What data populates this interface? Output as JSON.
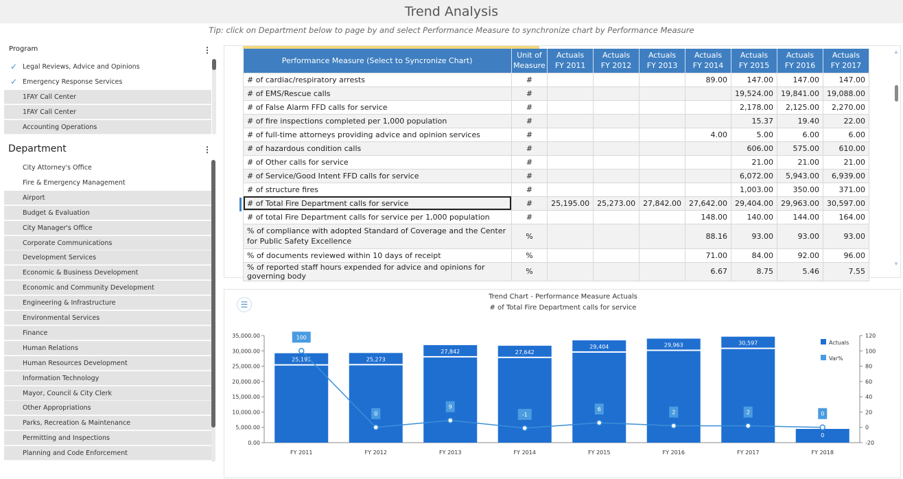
{
  "page": {
    "title": "Trend Analysis",
    "tip": "Tip: click on Department below to page by and select Performance Measure to synchronize chart by Performance Measure"
  },
  "program_slicer": {
    "header": "Program",
    "items": [
      {
        "label": "Legal Reviews, Advice and Opinions",
        "selected": true
      },
      {
        "label": "Emergency Response Services",
        "selected": true
      },
      {
        "label": "1FAY Call Center",
        "selected": false
      },
      {
        "label": "1FAY Call Center",
        "selected": false
      },
      {
        "label": "Accounting Operations",
        "selected": false
      }
    ]
  },
  "department_slicer": {
    "header": "Department",
    "items": [
      {
        "label": "City Attorney's Office",
        "selected": true
      },
      {
        "label": "Fire & Emergency Management",
        "selected": true
      },
      {
        "label": "Airport",
        "selected": false
      },
      {
        "label": "Budget & Evaluation",
        "selected": false
      },
      {
        "label": "City Manager's Office",
        "selected": false
      },
      {
        "label": "Corporate Communications",
        "selected": false
      },
      {
        "label": "Development Services",
        "selected": false
      },
      {
        "label": "Economic & Business Development",
        "selected": false
      },
      {
        "label": "Economic and Community Development",
        "selected": false
      },
      {
        "label": "Engineering & Infrastructure",
        "selected": false
      },
      {
        "label": "Environmental Services",
        "selected": false
      },
      {
        "label": "Finance",
        "selected": false
      },
      {
        "label": "Human Relations",
        "selected": false
      },
      {
        "label": "Human Resources Development",
        "selected": false
      },
      {
        "label": "Information Technology",
        "selected": false
      },
      {
        "label": "Mayor, Council & City Clerk",
        "selected": false
      },
      {
        "label": "Other Appropriations",
        "selected": false
      },
      {
        "label": "Parks, Recreation & Maintenance",
        "selected": false
      },
      {
        "label": "Permitting and Inspections",
        "selected": false
      },
      {
        "label": "Planning and Code Enforcement",
        "selected": false
      }
    ]
  },
  "table": {
    "headers": {
      "measure": "Performance Measure (Select to Syncronize Chart)",
      "unit": [
        "Unit of",
        "Measure"
      ],
      "years": [
        [
          "Actuals",
          "FY 2011"
        ],
        [
          "Actuals",
          "FY 2012"
        ],
        [
          "Actuals",
          "FY 2013"
        ],
        [
          "Actuals",
          "FY 2014"
        ],
        [
          "Actuals",
          "FY 2015"
        ],
        [
          "Actuals",
          "FY 2016"
        ],
        [
          "Actuals",
          "FY 2017"
        ]
      ]
    },
    "rows": [
      {
        "measure": "# of cardiac/respiratory arrests",
        "unit": "#",
        "values": [
          "",
          "",
          "",
          "89.00",
          "147.00",
          "147.00",
          "147.00"
        ]
      },
      {
        "measure": "# of EMS/Rescue calls",
        "unit": "#",
        "values": [
          "",
          "",
          "",
          "",
          "19,524.00",
          "19,841.00",
          "19,088.00"
        ]
      },
      {
        "measure": "# of False Alarm FFD calls for service",
        "unit": "#",
        "values": [
          "",
          "",
          "",
          "",
          "2,178.00",
          "2,125.00",
          "2,270.00"
        ]
      },
      {
        "measure": "# of fire inspections completed per 1,000 population",
        "unit": "#",
        "values": [
          "",
          "",
          "",
          "",
          "15.37",
          "19.40",
          "22.00"
        ]
      },
      {
        "measure": "# of full-time attorneys providing advice and opinion services",
        "unit": "#",
        "values": [
          "",
          "",
          "",
          "4.00",
          "5.00",
          "6.00",
          "6.00"
        ]
      },
      {
        "measure": "# of hazardous condition calls",
        "unit": "#",
        "values": [
          "",
          "",
          "",
          "",
          "606.00",
          "575.00",
          "610.00"
        ]
      },
      {
        "measure": "# of Other calls for service",
        "unit": "#",
        "values": [
          "",
          "",
          "",
          "",
          "21.00",
          "21.00",
          "21.00"
        ]
      },
      {
        "measure": "# of Service/Good Intent FFD calls for service",
        "unit": "#",
        "values": [
          "",
          "",
          "",
          "",
          "6,072.00",
          "5,943.00",
          "6,939.00"
        ]
      },
      {
        "measure": "# of structure fires",
        "unit": "#",
        "values": [
          "",
          "",
          "",
          "",
          "1,003.00",
          "350.00",
          "371.00"
        ]
      },
      {
        "measure": "# of Total Fire Department calls for service",
        "unit": "#",
        "values": [
          "25,195.00",
          "25,273.00",
          "27,842.00",
          "27,642.00",
          "29,404.00",
          "29,963.00",
          "30,597.00"
        ],
        "active": true
      },
      {
        "measure": "# of total Fire Department calls for service per 1,000 population",
        "unit": "#",
        "values": [
          "",
          "",
          "",
          "148.00",
          "140.00",
          "144.00",
          "164.00"
        ]
      },
      {
        "measure": "% of  compliance with adopted Standard of Coverage and the Center for Public Safety Excellence",
        "unit": "%",
        "values": [
          "",
          "",
          "",
          "88.16",
          "93.00",
          "93.00",
          "93.00"
        ],
        "tall": true
      },
      {
        "measure": "% of documents reviewed within 10 days of receipt",
        "unit": "%",
        "values": [
          "",
          "",
          "",
          "71.00",
          "84.00",
          "92.00",
          "96.00"
        ]
      },
      {
        "measure": "% of reported staff hours expended for advice and opinions for governing body",
        "unit": "%",
        "values": [
          "",
          "",
          "",
          "6.67",
          "8.75",
          "5.46",
          "7.55"
        ]
      }
    ]
  },
  "chart_data": {
    "type": "bar",
    "title": "Trend Chart - Performance Measure Actuals",
    "subtitle": "# of Total Fire Department calls for service",
    "categories": [
      "FY 2011",
      "FY 2012",
      "FY 2013",
      "FY 2014",
      "FY 2015",
      "FY 2016",
      "FY 2017",
      "FY 2018"
    ],
    "series": [
      {
        "name": "Actuals",
        "type": "bar",
        "axis": "left",
        "values": [
          25195,
          25273,
          27842,
          27642,
          29404,
          29963,
          30597,
          0
        ],
        "labels": [
          "25,195",
          "25,273",
          "27,842",
          "27,642",
          "29,404",
          "29,963",
          "30,597",
          "0"
        ]
      },
      {
        "name": "Var%",
        "type": "line",
        "axis": "right",
        "values": [
          100,
          0,
          9,
          -1,
          6,
          2,
          2,
          0
        ],
        "labels": [
          "100",
          "0",
          "9",
          "-1",
          "6",
          "2",
          "2",
          "0"
        ]
      }
    ],
    "left_axis": {
      "min": 0,
      "max": 35000,
      "ticks": [
        "0.00",
        "5,000.00",
        "10,000.00",
        "15,000.00",
        "20,000.00",
        "25,000.00",
        "30,000.00",
        "35,000.00"
      ]
    },
    "right_axis": {
      "min": -20,
      "max": 120,
      "ticks": [
        "-20",
        "0",
        "20",
        "40",
        "60",
        "80",
        "100",
        "120"
      ]
    },
    "legend_position": "top-right",
    "colors": {
      "bar": "#1f6fd1",
      "line": "#3b8fd6",
      "label_bg": "#1f6fd1"
    }
  },
  "colors": {
    "header_blue": "#3f7fc1",
    "accent": "#4a8fd0"
  }
}
